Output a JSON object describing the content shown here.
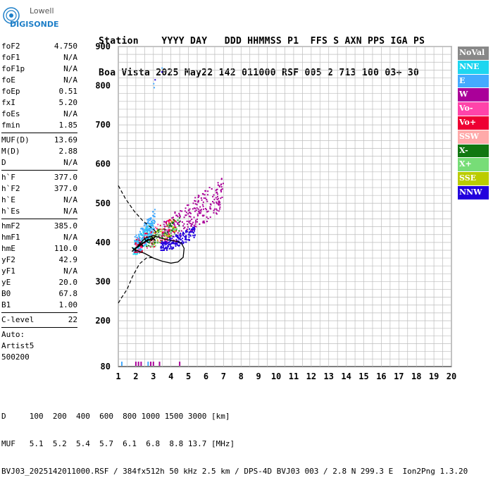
{
  "logo": {
    "line1": "Lowell",
    "line2": "DIGISONDE",
    "brand_color": "#1e7fc8"
  },
  "header": {
    "line1": "Station    YYYY DAY   DDD HHMMSS P1  FFS S AXN PPS IGA PS",
    "line2": "Boa Vista 2025 May22 142 011000 RSF 005 2 713 100 03+ 30"
  },
  "params": {
    "group1": [
      {
        "label": "foF2",
        "value": "4.750"
      },
      {
        "label": "foF1",
        "value": "N/A"
      },
      {
        "label": "foF1p",
        "value": "N/A"
      },
      {
        "label": "foE",
        "value": "N/A"
      },
      {
        "label": "foEp",
        "value": "0.51"
      },
      {
        "label": "fxI",
        "value": "5.20"
      },
      {
        "label": "foEs",
        "value": "N/A"
      },
      {
        "label": "fmin",
        "value": "1.85"
      }
    ],
    "group2": [
      {
        "label": "MUF(D)",
        "value": "13.69"
      },
      {
        "label": "M(D)",
        "value": "2.88"
      },
      {
        "label": "D",
        "value": "N/A"
      }
    ],
    "group3": [
      {
        "label": "h`F",
        "value": "377.0"
      },
      {
        "label": "h`F2",
        "value": "377.0"
      },
      {
        "label": "h`E",
        "value": "N/A"
      },
      {
        "label": "h`Es",
        "value": "N/A"
      }
    ],
    "group4": [
      {
        "label": "hmF2",
        "value": "385.0"
      },
      {
        "label": "hmF1",
        "value": "N/A"
      },
      {
        "label": "hmE",
        "value": "110.0"
      },
      {
        "label": "yF2",
        "value": "42.9"
      },
      {
        "label": "yF1",
        "value": "N/A"
      },
      {
        "label": "yE",
        "value": "20.0"
      },
      {
        "label": "B0",
        "value": "67.8"
      },
      {
        "label": "B1",
        "value": "1.00"
      }
    ],
    "group5": [
      {
        "label": "C-level",
        "value": "22"
      }
    ],
    "auto": [
      "Auto:",
      "Artist5",
      "500200"
    ]
  },
  "legend": [
    {
      "label": "NoVal",
      "color": "#888888"
    },
    {
      "label": "NNE",
      "color": "#1ed6f0"
    },
    {
      "label": "E",
      "color": "#44aaff"
    },
    {
      "label": "W",
      "color": "#aa0099"
    },
    {
      "label": "Vo-",
      "color": "#ff44aa"
    },
    {
      "label": "Vo+",
      "color": "#ee0033"
    },
    {
      "label": "SSW",
      "color": "#ffaaaa"
    },
    {
      "label": "X-",
      "color": "#117711"
    },
    {
      "label": "X+",
      "color": "#77dd77"
    },
    {
      "label": "SSE",
      "color": "#bbcc00"
    },
    {
      "label": "NNW",
      "color": "#2200dd"
    }
  ],
  "footer": {
    "line1": "D     100  200  400  600  800 1000 1500 3000 [km]",
    "line2": "MUF   5.1  5.2  5.4  5.7  6.1  6.8  8.8 13.7 [MHz]",
    "line3": "BVJ03_2025142011000.RSF / 384fx512h 50 kHz 2.5 km / DPS-4D BVJ03 003 / 2.8 N 299.3 E  Ion2Png 1.3.20"
  },
  "chart_data": {
    "type": "scatter",
    "xlabel": "",
    "ylabel": "",
    "xlim": [
      1,
      20
    ],
    "ylim": [
      80,
      900
    ],
    "x_ticks": [
      "1",
      "2",
      "3",
      "4",
      "5",
      "6",
      "7",
      "8",
      "9",
      "10",
      "11",
      "12",
      "13",
      "14",
      "15",
      "16",
      "17",
      "18",
      "19",
      "20"
    ],
    "y_ticks": [
      "80",
      "200",
      "300",
      "400",
      "500",
      "600",
      "700",
      "800",
      "900"
    ],
    "grid": true,
    "legend_position": "right",
    "clusters": [
      {
        "name": "NNE",
        "color": "#1ed6f0",
        "x_range": [
          1.85,
          3.0
        ],
        "y_range": [
          370,
          470
        ],
        "count": 140
      },
      {
        "name": "E",
        "color": "#44aaff",
        "x_range": [
          1.9,
          3.1
        ],
        "y_range": [
          375,
          500
        ],
        "count": 160
      },
      {
        "name": "W",
        "color": "#aa0099",
        "x_range": [
          3.5,
          7.0
        ],
        "y_range": [
          400,
          590
        ],
        "count": 260
      },
      {
        "name": "Vo-",
        "color": "#ff44aa",
        "x_range": [
          2.0,
          4.0
        ],
        "y_range": [
          380,
          480
        ],
        "count": 40
      },
      {
        "name": "Vo+",
        "color": "#ee0033",
        "x_range": [
          1.9,
          4.3
        ],
        "y_range": [
          375,
          480
        ],
        "count": 90
      },
      {
        "name": "X-",
        "color": "#117711",
        "x_range": [
          2.6,
          4.5
        ],
        "y_range": [
          390,
          480
        ],
        "count": 60
      },
      {
        "name": "X+",
        "color": "#77dd77",
        "x_range": [
          2.7,
          4.4
        ],
        "y_range": [
          390,
          470
        ],
        "count": 30
      },
      {
        "name": "SSE",
        "color": "#bbcc00",
        "x_range": [
          2.8,
          4.3
        ],
        "y_range": [
          395,
          470
        ],
        "count": 20
      },
      {
        "name": "NNW",
        "color": "#2200dd",
        "x_range": [
          3.4,
          5.4
        ],
        "y_range": [
          380,
          450
        ],
        "count": 170
      },
      {
        "name": "NoVal",
        "color": "#888888",
        "x_range": [
          2.8,
          4.0
        ],
        "y_range": [
          390,
          460
        ],
        "count": 20
      }
    ],
    "sparse_points": [
      {
        "x": 3.02,
        "y": 805,
        "color": "#44aaff"
      },
      {
        "x": 3.05,
        "y": 795,
        "color": "#44aaff"
      },
      {
        "x": 3.5,
        "y": 845,
        "color": "#44aaff"
      },
      {
        "x": 3.48,
        "y": 835,
        "color": "#2200dd"
      },
      {
        "x": 3.1,
        "y": 815,
        "color": "#2200dd"
      }
    ],
    "edensity_profile": [
      {
        "x": 1.9,
        "y": 382
      },
      {
        "x": 2.5,
        "y": 372
      },
      {
        "x": 3.0,
        "y": 360
      },
      {
        "x": 3.5,
        "y": 352
      },
      {
        "x": 4.0,
        "y": 347
      },
      {
        "x": 4.4,
        "y": 350
      },
      {
        "x": 4.7,
        "y": 362
      },
      {
        "x": 4.75,
        "y": 385
      },
      {
        "x": 4.6,
        "y": 398
      },
      {
        "x": 4.4,
        "y": 402
      },
      {
        "x": 4.0,
        "y": 405
      },
      {
        "x": 3.5,
        "y": 410
      },
      {
        "x": 3.0,
        "y": 418
      },
      {
        "x": 2.5,
        "y": 410
      },
      {
        "x": 2.0,
        "y": 385
      }
    ],
    "extrapolated_bottom": [
      {
        "x": 1.0,
        "y": 245
      },
      {
        "x": 1.2,
        "y": 260
      },
      {
        "x": 1.5,
        "y": 280
      },
      {
        "x": 1.8,
        "y": 312
      },
      {
        "x": 2.2,
        "y": 345
      },
      {
        "x": 2.6,
        "y": 360
      },
      {
        "x": 3.0,
        "y": 362
      }
    ],
    "extrapolated_top": [
      {
        "x": 1.0,
        "y": 545
      },
      {
        "x": 1.4,
        "y": 512
      },
      {
        "x": 1.9,
        "y": 480
      },
      {
        "x": 2.4,
        "y": 455
      },
      {
        "x": 2.9,
        "y": 437
      },
      {
        "x": 3.2,
        "y": 425
      }
    ],
    "fit_line": [
      {
        "x": 1.9,
        "y": 382
      },
      {
        "x": 2.3,
        "y": 395
      },
      {
        "x": 2.6,
        "y": 404
      },
      {
        "x": 3.0,
        "y": 410
      }
    ],
    "bottom_markers": [
      {
        "x": 1.2,
        "color": "#44aaff"
      },
      {
        "x": 2.0,
        "color": "#aa0099"
      },
      {
        "x": 2.15,
        "color": "#aa0099"
      },
      {
        "x": 2.3,
        "color": "#aa0099"
      },
      {
        "x": 2.7,
        "color": "#44aaff"
      },
      {
        "x": 2.85,
        "color": "#aa0099"
      },
      {
        "x": 3.0,
        "color": "#aa0099"
      },
      {
        "x": 3.35,
        "color": "#aa0099"
      },
      {
        "x": 4.5,
        "color": "#aa0099"
      }
    ]
  }
}
